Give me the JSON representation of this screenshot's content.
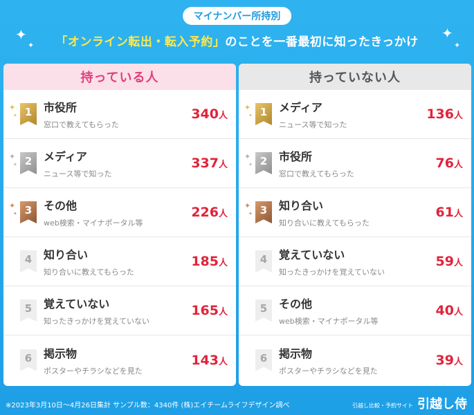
{
  "header": {
    "badge": "マイナンバー所持別",
    "headline_highlight": "「オンライン転出・転入予約」",
    "headline_rest": "のことを一番最初に知ったきっかけ"
  },
  "left_panel": {
    "title": "持っている人",
    "rows": [
      {
        "rank": "1",
        "title": "市役所",
        "sub": "窓口で教えてもらった",
        "count": "340",
        "unit": "人"
      },
      {
        "rank": "2",
        "title": "メディア",
        "sub": "ニュース等で知った",
        "count": "337",
        "unit": "人"
      },
      {
        "rank": "3",
        "title": "その他",
        "sub": "web検索・マイナポータル等",
        "count": "226",
        "unit": "人"
      },
      {
        "rank": "4",
        "title": "知り合い",
        "sub": "知り合いに教えてもらった",
        "count": "185",
        "unit": "人"
      },
      {
        "rank": "5",
        "title": "覚えていない",
        "sub": "知ったきっかけを覚えていない",
        "count": "165",
        "unit": "人"
      },
      {
        "rank": "6",
        "title": "掲示物",
        "sub": "ポスターやチラシなどを見た",
        "count": "143",
        "unit": "人"
      }
    ]
  },
  "right_panel": {
    "title": "持っていない人",
    "rows": [
      {
        "rank": "1",
        "title": "メディア",
        "sub": "ニュース等で知った",
        "count": "136",
        "unit": "人"
      },
      {
        "rank": "2",
        "title": "市役所",
        "sub": "窓口で教えてもらった",
        "count": "76",
        "unit": "人"
      },
      {
        "rank": "3",
        "title": "知り合い",
        "sub": "知り合いに教えてもらった",
        "count": "61",
        "unit": "人"
      },
      {
        "rank": "4",
        "title": "覚えていない",
        "sub": "知ったきっかけを覚えていない",
        "count": "59",
        "unit": "人"
      },
      {
        "rank": "5",
        "title": "その他",
        "sub": "web検索・マイナポータル等",
        "count": "40",
        "unit": "人"
      },
      {
        "rank": "6",
        "title": "掲示物",
        "sub": "ポスターやチラシなどを見た",
        "count": "39",
        "unit": "人"
      }
    ]
  },
  "footer": {
    "note": "※2023年3月10日～4月26日集計 サンプル数：4340件 (株)エイチームライフデザイン調べ",
    "brand_small": "引越し比較・予約サイト",
    "brand_big": "引越し侍"
  },
  "colors": {
    "background": "#1e9fe6",
    "highlight": "#ffe94a",
    "count_red": "#e0233a",
    "left_header_bg": "#fbe0ea",
    "left_header_text": "#e0407a"
  },
  "medal_styles": [
    "gold",
    "silver",
    "bronze",
    "plain",
    "plain",
    "plain"
  ],
  "sparkle_glyph": "✦"
}
